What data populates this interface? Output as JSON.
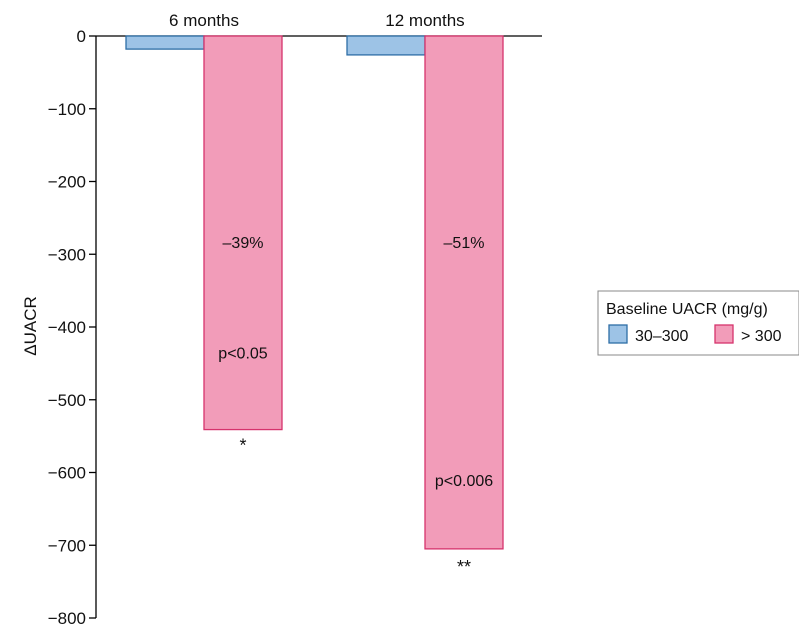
{
  "chart_data": {
    "type": "bar",
    "categories": [
      "6 months",
      "12 months"
    ],
    "ylabel": "ΔUACR",
    "ylim": [
      -800,
      0
    ],
    "yticks": [
      0,
      -100,
      -200,
      -300,
      -400,
      -500,
      -600,
      -700,
      -800
    ],
    "ytick_labels": [
      "0",
      "−100",
      "−200",
      "−300",
      "−400",
      "−500",
      "−600",
      "−700",
      "−800"
    ],
    "grid": false,
    "legend": {
      "title": "Baseline UACR (mg/g)",
      "placement": "right"
    },
    "series": [
      {
        "name": "30–300",
        "color": "#9dc3e6",
        "edge": "#2e6ea6",
        "values": [
          -18,
          -26
        ]
      },
      {
        "name": "> 300",
        "color": "#f29cb9",
        "edge": "#d6336c",
        "values": [
          -541,
          -705
        ]
      }
    ],
    "annotations": [
      {
        "series": 1,
        "category": 0,
        "y": -283,
        "text": "–39%"
      },
      {
        "series": 1,
        "category": 0,
        "y": -435,
        "text": "p<0.05"
      },
      {
        "series": 1,
        "category": 0,
        "y": -563,
        "text": "*"
      },
      {
        "series": 1,
        "category": 1,
        "y": -283,
        "text": "–51%"
      },
      {
        "series": 1,
        "category": 1,
        "y": -610,
        "text": "p<0.006"
      },
      {
        "series": 1,
        "category": 1,
        "y": -730,
        "text": "**"
      }
    ]
  }
}
